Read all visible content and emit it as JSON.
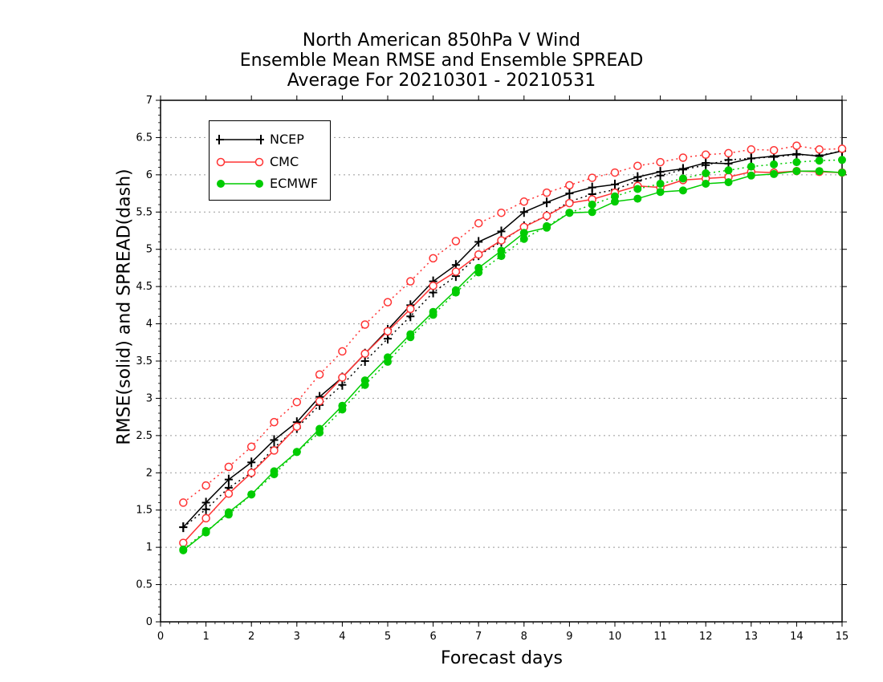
{
  "chart_data": {
    "type": "line",
    "title": [
      "North American 850hPa V Wind",
      "Ensemble Mean RMSE and Ensemble SPREAD",
      "Average For 20210301 - 20210531"
    ],
    "xlabel": "Forecast days",
    "ylabel": "RMSE(solid) and SPREAD(dash)",
    "xlim": [
      0,
      15
    ],
    "ylim": [
      0,
      7
    ],
    "xticks": [
      "0",
      "1",
      "2",
      "3",
      "4",
      "5",
      "6",
      "7",
      "8",
      "9",
      "10",
      "11",
      "12",
      "13",
      "14",
      "15"
    ],
    "yticks": [
      "0",
      "0.5",
      "1",
      "1.5",
      "2",
      "2.5",
      "3",
      "3.5",
      "4",
      "4.5",
      "5",
      "5.5",
      "6",
      "6.5",
      "7"
    ],
    "grid": "horizontal dotted",
    "legend_position": "top-left",
    "x": [
      0.5,
      1,
      1.5,
      2,
      2.5,
      3,
      3.5,
      4,
      4.5,
      5,
      5.5,
      6,
      6.5,
      7,
      7.5,
      8,
      8.5,
      9,
      9.5,
      10,
      10.5,
      11,
      11.5,
      12,
      12.5,
      13,
      13.5,
      14,
      14.5,
      15
    ],
    "series": [
      {
        "name": "NCEP",
        "color": "#000000",
        "marker": "plus",
        "rmse": [
          1.27,
          1.6,
          1.91,
          2.14,
          2.44,
          2.68,
          3.02,
          3.28,
          3.6,
          3.92,
          4.25,
          4.57,
          4.79,
          5.1,
          5.24,
          5.5,
          5.63,
          5.75,
          5.83,
          5.87,
          5.97,
          6.04,
          6.08,
          6.16,
          6.15,
          6.22,
          6.25,
          6.28,
          6.25,
          6.32
        ],
        "spread": [
          1.27,
          1.51,
          1.8,
          2.0,
          2.34,
          2.6,
          2.91,
          3.18,
          3.5,
          3.8,
          4.1,
          4.42,
          4.64,
          4.92,
          5.1,
          5.31,
          5.45,
          5.64,
          5.74,
          5.8,
          5.92,
          5.99,
          6.07,
          6.13,
          6.2,
          6.22,
          6.24,
          6.27,
          6.26,
          6.32
        ]
      },
      {
        "name": "CMC",
        "color": "#ff3333",
        "marker": "open-circle",
        "rmse": [
          1.06,
          1.39,
          1.72,
          2.0,
          2.3,
          2.62,
          2.96,
          3.28,
          3.6,
          3.9,
          4.2,
          4.51,
          4.7,
          4.93,
          5.12,
          5.3,
          5.45,
          5.62,
          5.67,
          5.76,
          5.85,
          5.83,
          5.93,
          5.95,
          5.97,
          6.04,
          6.03,
          6.05,
          6.04,
          6.03
        ],
        "spread": [
          1.6,
          1.83,
          2.08,
          2.35,
          2.68,
          2.95,
          3.32,
          3.63,
          3.99,
          4.29,
          4.57,
          4.88,
          5.11,
          5.35,
          5.49,
          5.64,
          5.76,
          5.86,
          5.96,
          6.03,
          6.12,
          6.17,
          6.23,
          6.27,
          6.29,
          6.34,
          6.33,
          6.39,
          6.34,
          6.35
        ]
      },
      {
        "name": "ECMWF",
        "color": "#00cc00",
        "marker": "filled-circle",
        "rmse": [
          0.96,
          1.2,
          1.47,
          1.71,
          2.02,
          2.28,
          2.59,
          2.9,
          3.24,
          3.55,
          3.86,
          4.16,
          4.45,
          4.75,
          4.98,
          5.22,
          5.29,
          5.49,
          5.5,
          5.64,
          5.68,
          5.77,
          5.79,
          5.88,
          5.9,
          5.99,
          6.01,
          6.05,
          6.05,
          6.03
        ],
        "spread": [
          0.97,
          1.22,
          1.44,
          1.71,
          1.98,
          2.28,
          2.54,
          2.85,
          3.18,
          3.49,
          3.82,
          4.12,
          4.42,
          4.69,
          4.91,
          5.14,
          5.31,
          5.49,
          5.6,
          5.71,
          5.81,
          5.88,
          5.95,
          6.02,
          6.06,
          6.11,
          6.14,
          6.17,
          6.19,
          6.2
        ]
      }
    ]
  }
}
